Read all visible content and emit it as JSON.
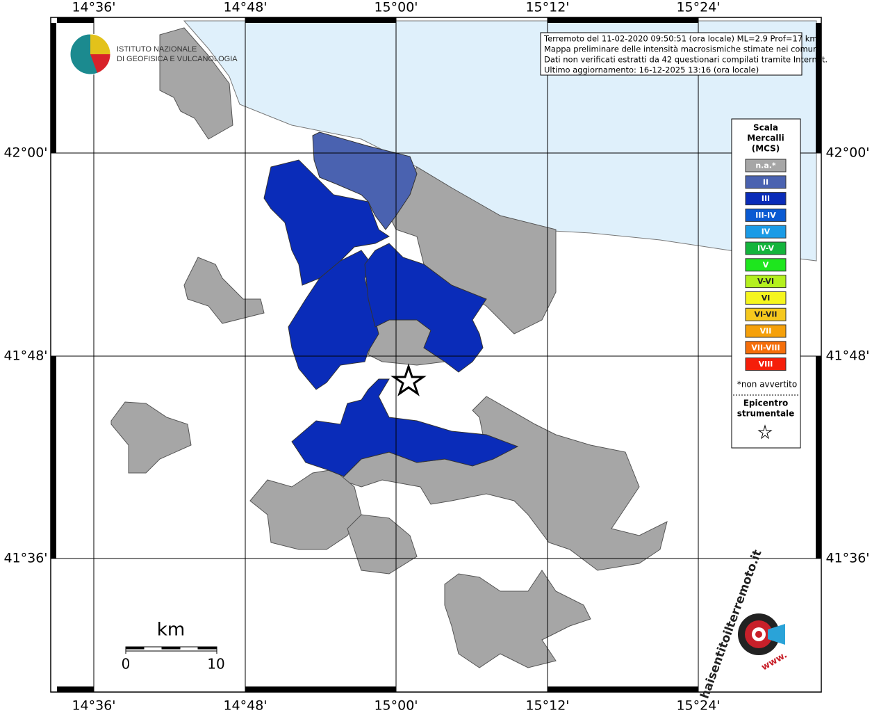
{
  "map": {
    "grid_x_labels": [
      "14°36'",
      "14°48'",
      "15°00'",
      "15°12'",
      "15°24'"
    ],
    "grid_y_labels": [
      "42°00'",
      "41°48'",
      "41°36'"
    ],
    "info": [
      "Terremoto del 11-02-2020 09:50:51 (ora locale) ML=2.9 Prof=17 km",
      "Mappa preliminare delle intensità macrosismiche stimate nei comuni",
      "Dati non verificati estratti da 42 questionari compilati tramite Internet.",
      "Ultimo aggiornamento: 16-12-2025 13:16 (ora locale)"
    ],
    "logo": [
      "ISTITUTO NAZIONALE",
      "DI GEOFISICA E VULCANOLOGIA"
    ],
    "legend": {
      "title": [
        "Scala",
        "Mercalli",
        "(MCS)"
      ],
      "items": [
        {
          "label": "n.a.*",
          "color": "#a6a6a6"
        },
        {
          "label": "II",
          "color": "#4a62b0"
        },
        {
          "label": "III",
          "color": "#0a2cb9"
        },
        {
          "label": "III-IV",
          "color": "#0a5ad2"
        },
        {
          "label": "IV",
          "color": "#1a9be6"
        },
        {
          "label": "IV-V",
          "color": "#14b43c"
        },
        {
          "label": "V",
          "color": "#1ee61e"
        },
        {
          "label": "V-VI",
          "color": "#b4f01e"
        },
        {
          "label": "VI",
          "color": "#f5f51e"
        },
        {
          "label": "VI-VII",
          "color": "#f5c81e"
        },
        {
          "label": "VII",
          "color": "#f5a00a"
        },
        {
          "label": "VII-VIII",
          "color": "#f56e0a"
        },
        {
          "label": "VIII",
          "color": "#f51e0a"
        }
      ],
      "note": "*non avvertito",
      "epicenter": [
        "Epicentro",
        "strumentale"
      ]
    },
    "scale": {
      "unit": "km",
      "start": "0",
      "end": "10"
    },
    "watermark": {
      "prefix": "www.",
      "text": "haisentitoilterremoto.it"
    }
  }
}
